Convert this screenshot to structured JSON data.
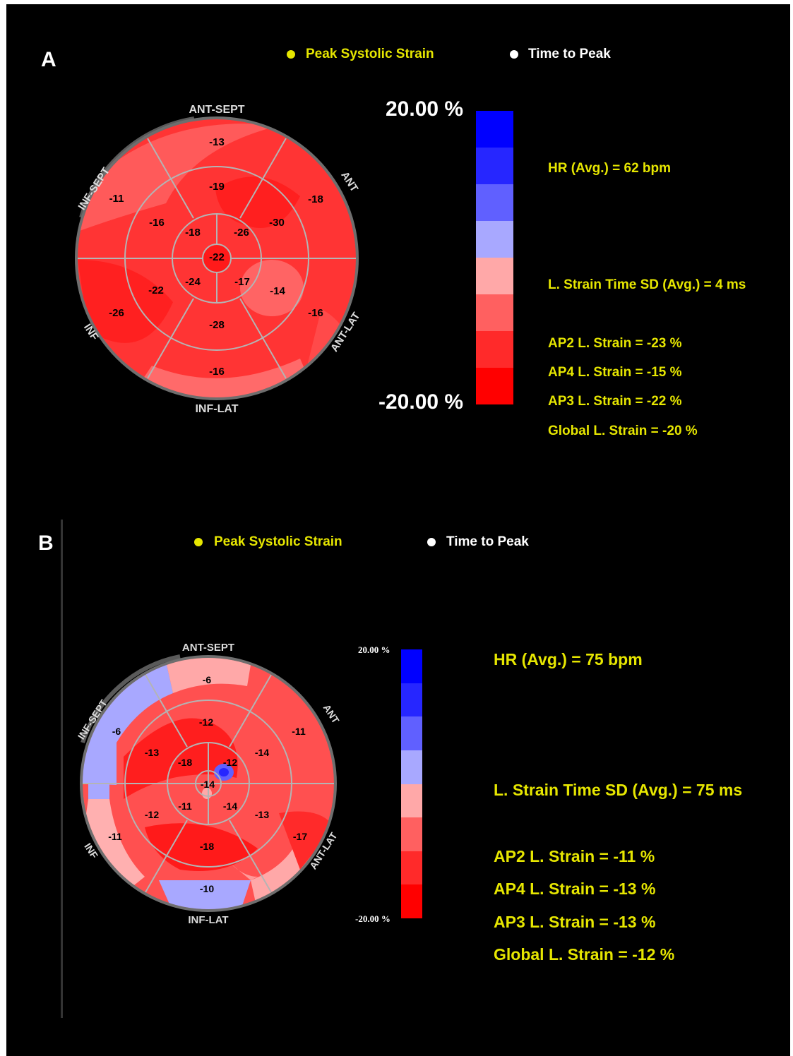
{
  "colors": {
    "background": "#000000",
    "legend_yellow": "#e6e600",
    "colorbar": [
      "#0000ff",
      "#2626ff",
      "#6060ff",
      "#a8a8ff",
      "#ffa8a8",
      "#ff6060",
      "#ff2a2a",
      "#ff0000"
    ]
  },
  "panelA": {
    "letter": "A",
    "legend": {
      "peak": "Peak Systolic Strain",
      "time": "Time to Peak"
    },
    "labels": {
      "top": "ANT-SEPT",
      "top_left": "INF-SEPT",
      "top_right": "ANT",
      "bottom_left": "INF",
      "bottom_right": "ANT-LAT",
      "bottom": "INF-LAT"
    },
    "segments": {
      "basal": [
        "-13",
        "-18",
        "-16",
        "-16",
        "-26",
        "-11"
      ],
      "mid": [
        "-19",
        "-30",
        "-14",
        "-28",
        "-22",
        "-16"
      ],
      "apical": [
        "-26",
        "-17",
        "-24",
        "-18"
      ],
      "apex": "-22"
    },
    "scale": {
      "max": "20.00 %",
      "min": "-20.00 %"
    },
    "info": {
      "hr": "HR (Avg.) = 62 bpm",
      "sd": "L. Strain Time SD (Avg.) = 4 ms",
      "ap2": "AP2 L. Strain = -23 %",
      "ap4": "AP4 L. Strain = -15 %",
      "ap3": "AP3 L. Strain = -22 %",
      "global": "Global L. Strain = -20 %"
    }
  },
  "panelB": {
    "letter": "B",
    "legend": {
      "peak": "Peak Systolic Strain",
      "time": "Time to Peak"
    },
    "labels": {
      "top": "ANT-SEPT",
      "top_left": "INF-SEPT",
      "top_right": "ANT",
      "bottom_left": "INF",
      "bottom_right": "ANT-LAT",
      "bottom": "INF-LAT"
    },
    "segments": {
      "basal": [
        "-6",
        "-11",
        "-17",
        "-10",
        "-11",
        "-6"
      ],
      "mid": [
        "-12",
        "-14",
        "-13",
        "-18",
        "-12",
        "-13"
      ],
      "apical": [
        "-12",
        "-14",
        "-11",
        "-18"
      ],
      "apex": "-14"
    },
    "scale": {
      "max": "20.00 %",
      "min": "-20.00 %"
    },
    "info": {
      "hr": "HR (Avg.) = 75 bpm",
      "sd": "L. Strain Time SD (Avg.) = 75 ms",
      "ap2": "AP2 L. Strain = -11 %",
      "ap4": "AP4 L. Strain = -13 %",
      "ap3": "AP3 L. Strain = -13 %",
      "global": "Global L. Strain = -12 %"
    }
  }
}
